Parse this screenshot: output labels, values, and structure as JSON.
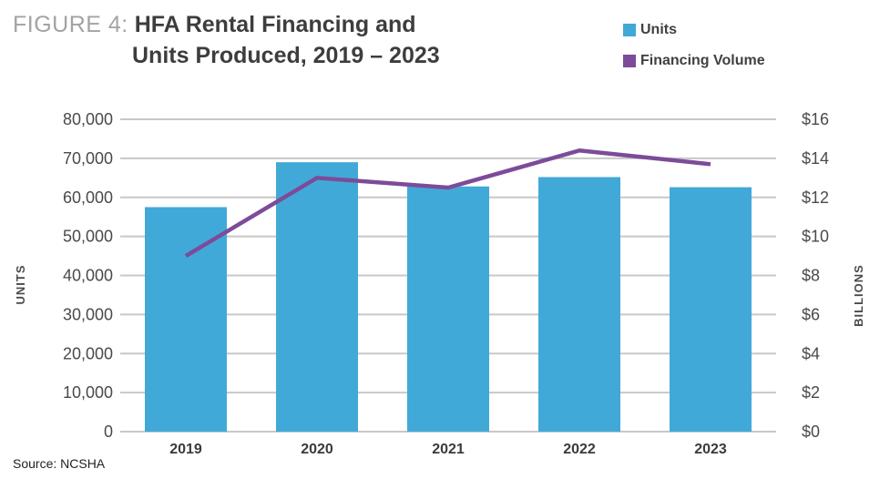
{
  "figure_label": "FIGURE 4:",
  "title_line1": "HFA Rental Financing and",
  "title_line2": "Units Produced, 2019 – 2023",
  "source": "Source: NCSHA",
  "colors": {
    "units": "#41a9d7",
    "financing": "#7d4b9a",
    "grid": "#c8c8c8"
  },
  "chart_data": {
    "type": "bar",
    "title": "HFA Rental Financing and Units Produced, 2019 – 2023",
    "categories": [
      "2019",
      "2020",
      "2021",
      "2022",
      "2023"
    ],
    "series": [
      {
        "name": "Units",
        "type": "bar",
        "axis": "left",
        "values": [
          57500,
          69000,
          62800,
          65200,
          62600
        ]
      },
      {
        "name": "Financing Volume",
        "type": "line",
        "axis": "right",
        "values": [
          9.0,
          13.0,
          12.5,
          14.4,
          13.7
        ]
      }
    ],
    "y_left": {
      "label": "UNITS",
      "range": [
        0,
        80000
      ],
      "ticks": [
        0,
        10000,
        20000,
        30000,
        40000,
        50000,
        60000,
        70000,
        80000
      ],
      "tick_labels": [
        "0",
        "10,000",
        "20,000",
        "30,000",
        "40,000",
        "50,000",
        "60,000",
        "70,000",
        "80,000"
      ]
    },
    "y_right": {
      "label": "BILLIONS",
      "range": [
        0,
        16
      ],
      "ticks": [
        0,
        2,
        4,
        6,
        8,
        10,
        12,
        14,
        16
      ],
      "tick_labels": [
        "$0",
        "$2",
        "$4",
        "$6",
        "$8",
        "$10",
        "$12",
        "$14",
        "$16"
      ]
    },
    "grid": true,
    "legend": "top-right"
  }
}
